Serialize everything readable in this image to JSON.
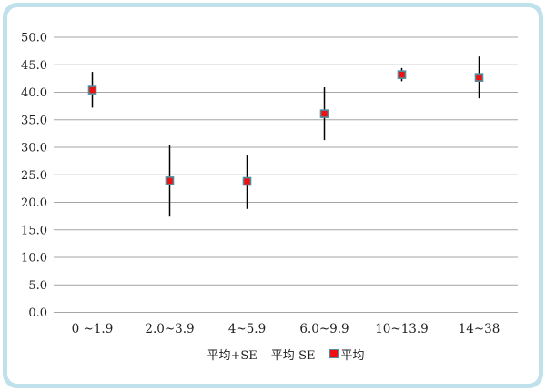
{
  "chart_data": {
    "type": "scatter",
    "title": "",
    "xlabel": "",
    "ylabel": "",
    "categories": [
      "0 ~1.9",
      "2.0~3.9",
      "4~5.9",
      "6.0~9.9",
      "10~13.9",
      "14~38"
    ],
    "series": [
      {
        "name": "平均+SE",
        "values": [
          43.7,
          30.5,
          28.5,
          40.9,
          44.4,
          46.5
        ]
      },
      {
        "name": "平均-SE",
        "values": [
          37.2,
          17.4,
          18.8,
          31.3,
          42.0,
          38.9
        ]
      },
      {
        "name": "平均",
        "marker": "red-square",
        "values": [
          40.4,
          23.9,
          23.8,
          36.1,
          43.2,
          42.7
        ]
      }
    ],
    "ylim": [
      0,
      50
    ],
    "ytick_step": 5,
    "ytick_labels": [
      "0.0",
      "5.0",
      "10.0",
      "15.0",
      "20.0",
      "25.0",
      "30.0",
      "35.0",
      "40.0",
      "45.0",
      "50.0"
    ],
    "grid": "horizontal",
    "legend_position": "bottom",
    "colors": {
      "marker_fill": "#ee1111",
      "marker_stroke": "#4e8f9f",
      "error_bar": "#000000",
      "gridline": "#a6a6a6",
      "tick_text": "#1f1f1f",
      "frame_border": "#bfe1ec",
      "background": "#ffffff"
    }
  }
}
